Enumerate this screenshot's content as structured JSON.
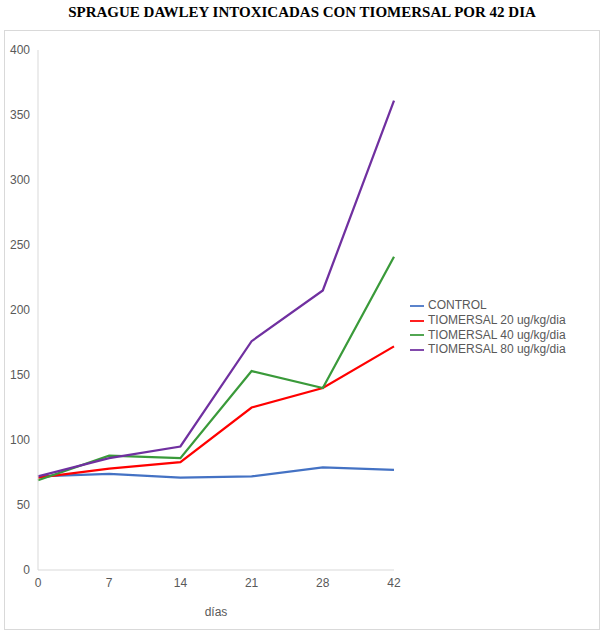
{
  "chart_data": {
    "type": "line",
    "title": "SPRAGUE DAWLEY INTOXICADAS CON TIOMERSAL POR 42 DIA",
    "x_label": "días",
    "categories": [
      "0",
      "7",
      "14",
      "21",
      "28",
      "42"
    ],
    "series": [
      {
        "name": "CONTROL",
        "color": "#4472c4",
        "values": [
          72,
          74,
          71,
          72,
          79,
          77
        ]
      },
      {
        "name": "TIOMERSAL 20 ug/kg/dia",
        "color": "#ff0000",
        "values": [
          71,
          78,
          83,
          125,
          140,
          172
        ]
      },
      {
        "name": "TIOMERSAL 40 ug/kg/dia",
        "color": "#3a9a3a",
        "values": [
          69,
          88,
          86,
          153,
          140,
          241
        ]
      },
      {
        "name": "TIOMERSAL 80 ug/kg/dia",
        "color": "#7030a0",
        "values": [
          72,
          86,
          95,
          176,
          215,
          361
        ]
      }
    ],
    "ylim": [
      0,
      400
    ],
    "yticks": [
      0,
      50,
      100,
      150,
      200,
      250,
      300,
      350,
      400
    ],
    "grid": false,
    "legend": "right"
  }
}
